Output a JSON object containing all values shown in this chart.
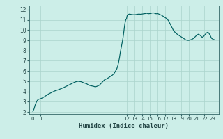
{
  "title": "",
  "xlabel": "Humidex (Indice chaleur)",
  "bg_color": "#cceee8",
  "grid_color": "#aad4cc",
  "line_color": "#006060",
  "x_ticks": [
    0,
    1,
    12,
    13,
    14,
    15,
    16,
    17,
    18,
    19,
    20,
    21,
    22,
    23
  ],
  "x_tick_labels": [
    "0",
    "1",
    "12",
    "13",
    "14",
    "15",
    "16",
    "17",
    "18",
    "19",
    "20",
    "21",
    "22",
    "23"
  ],
  "ylim": [
    1.8,
    12.4
  ],
  "xlim": [
    -0.5,
    23.8
  ],
  "y_ticks": [
    2,
    3,
    4,
    5,
    6,
    7,
    8,
    9,
    10,
    11,
    12
  ],
  "curve": [
    [
      0.0,
      2.05
    ],
    [
      0.15,
      2.3
    ],
    [
      0.3,
      2.7
    ],
    [
      0.5,
      3.05
    ],
    [
      0.65,
      3.2
    ],
    [
      0.8,
      3.25
    ],
    [
      1.0,
      3.3
    ],
    [
      1.3,
      3.4
    ],
    [
      1.7,
      3.6
    ],
    [
      2.0,
      3.75
    ],
    [
      2.4,
      3.9
    ],
    [
      2.8,
      4.05
    ],
    [
      3.2,
      4.15
    ],
    [
      3.7,
      4.3
    ],
    [
      4.0,
      4.4
    ],
    [
      4.4,
      4.55
    ],
    [
      4.8,
      4.7
    ],
    [
      5.2,
      4.85
    ],
    [
      5.5,
      4.95
    ],
    [
      5.8,
      5.0
    ],
    [
      6.2,
      4.95
    ],
    [
      6.5,
      4.85
    ],
    [
      6.9,
      4.75
    ],
    [
      7.2,
      4.6
    ],
    [
      7.5,
      4.55
    ],
    [
      7.8,
      4.5
    ],
    [
      8.0,
      4.45
    ],
    [
      8.2,
      4.5
    ],
    [
      8.5,
      4.6
    ],
    [
      8.7,
      4.75
    ],
    [
      9.0,
      5.0
    ],
    [
      9.2,
      5.15
    ],
    [
      9.5,
      5.25
    ],
    [
      9.8,
      5.4
    ],
    [
      10.0,
      5.5
    ],
    [
      10.2,
      5.6
    ],
    [
      10.4,
      5.75
    ],
    [
      10.6,
      6.0
    ],
    [
      10.75,
      6.2
    ],
    [
      10.9,
      6.55
    ],
    [
      11.0,
      6.9
    ],
    [
      11.1,
      7.3
    ],
    [
      11.2,
      7.8
    ],
    [
      11.3,
      8.2
    ],
    [
      11.4,
      8.6
    ],
    [
      11.5,
      9.0
    ],
    [
      11.6,
      9.5
    ],
    [
      11.65,
      9.8
    ],
    [
      11.7,
      10.1
    ],
    [
      11.75,
      10.4
    ],
    [
      11.8,
      10.65
    ],
    [
      11.85,
      10.85
    ],
    [
      11.9,
      11.0
    ],
    [
      12.0,
      11.1
    ],
    [
      12.05,
      11.3
    ],
    [
      12.1,
      11.45
    ],
    [
      12.2,
      11.52
    ],
    [
      12.3,
      11.55
    ],
    [
      12.4,
      11.57
    ],
    [
      12.5,
      11.55
    ],
    [
      12.7,
      11.52
    ],
    [
      13.0,
      11.5
    ],
    [
      13.2,
      11.52
    ],
    [
      13.4,
      11.55
    ],
    [
      13.6,
      11.57
    ],
    [
      13.8,
      11.55
    ],
    [
      14.0,
      11.57
    ],
    [
      14.2,
      11.6
    ],
    [
      14.4,
      11.62
    ],
    [
      14.6,
      11.65
    ],
    [
      14.8,
      11.6
    ],
    [
      15.0,
      11.62
    ],
    [
      15.2,
      11.65
    ],
    [
      15.4,
      11.7
    ],
    [
      15.6,
      11.65
    ],
    [
      15.8,
      11.6
    ],
    [
      16.0,
      11.62
    ],
    [
      16.2,
      11.55
    ],
    [
      16.5,
      11.45
    ],
    [
      16.7,
      11.35
    ],
    [
      17.0,
      11.2
    ],
    [
      17.2,
      11.1
    ],
    [
      17.4,
      10.9
    ],
    [
      17.6,
      10.6
    ],
    [
      17.8,
      10.3
    ],
    [
      18.0,
      10.0
    ],
    [
      18.2,
      9.8
    ],
    [
      18.5,
      9.6
    ],
    [
      18.8,
      9.45
    ],
    [
      19.0,
      9.35
    ],
    [
      19.2,
      9.25
    ],
    [
      19.4,
      9.15
    ],
    [
      19.6,
      9.05
    ],
    [
      19.8,
      9.0
    ],
    [
      20.0,
      9.0
    ],
    [
      20.2,
      9.05
    ],
    [
      20.4,
      9.1
    ],
    [
      20.6,
      9.2
    ],
    [
      20.8,
      9.35
    ],
    [
      21.0,
      9.5
    ],
    [
      21.2,
      9.6
    ],
    [
      21.35,
      9.55
    ],
    [
      21.5,
      9.45
    ],
    [
      21.7,
      9.3
    ],
    [
      21.9,
      9.4
    ],
    [
      22.1,
      9.6
    ],
    [
      22.3,
      9.75
    ],
    [
      22.45,
      9.8
    ],
    [
      22.6,
      9.65
    ],
    [
      22.75,
      9.45
    ],
    [
      22.9,
      9.2
    ],
    [
      23.1,
      9.1
    ],
    [
      23.3,
      9.05
    ]
  ]
}
